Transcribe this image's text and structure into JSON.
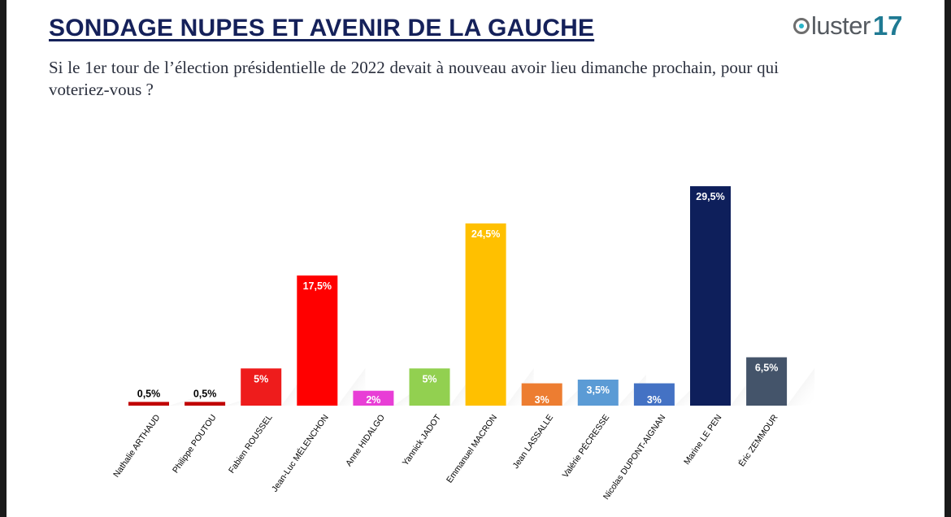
{
  "header": {
    "title": "SONDAGE NUPES ET AVENIR DE LA GAUCHE",
    "question": "Si le 1er tour de l’élection présidentielle de 2022 devait à nouveau avoir lieu dimanche prochain, pour qui voteriez-vous ?",
    "logo_word": "luster",
    "logo_number": "17"
  },
  "chart_data": {
    "type": "bar",
    "title": "",
    "xlabel": "",
    "ylabel": "",
    "ylim": [
      0,
      30
    ],
    "categories": [
      "Nathalie ARTHAUD",
      "Philippe POUTOU",
      "Fabien ROUSSEL",
      "Jean-Luc MÉLENCHON",
      "Anne HIDALGO",
      "Yannick JADOT",
      "Emmanuel MACRON",
      "Jean LASSALLE",
      "Valérie PÉCRESSE",
      "Nicolas DUPONT-AIGNAN",
      "Marine LE PEN",
      "Éric ZEMMOUR"
    ],
    "values": [
      0.5,
      0.5,
      5,
      17.5,
      2,
      5,
      24.5,
      3,
      3.5,
      3,
      29.5,
      6.5
    ],
    "labels": [
      "0,5%",
      "0,5%",
      "5%",
      "17,5%",
      "2%",
      "5%",
      "24,5%",
      "3%",
      "3,5%",
      "3%",
      "29,5%",
      "6,5%"
    ],
    "colors": [
      "#c00000",
      "#c00000",
      "#ee1c1c",
      "#ff0000",
      "#e83ed6",
      "#92d050",
      "#ffc000",
      "#ed7d31",
      "#5b9bd5",
      "#4472c4",
      "#0e1f5b",
      "#44546a"
    ],
    "grid": false,
    "legend": "none"
  }
}
